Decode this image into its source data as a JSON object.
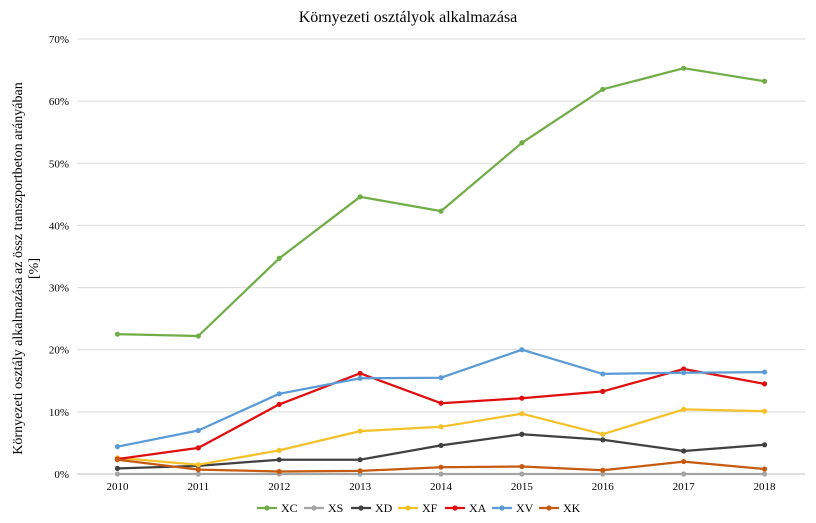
{
  "chart_data": {
    "type": "line",
    "title": "Környezeti osztályok alkalmazása",
    "xlabel": "",
    "ylabel": "Környezeti osztály alkalmazása az össz transzportbeton arányában [%]",
    "ylabel_lines": [
      "Környezeti osztály alkalmazása az össz  transzportbeton arányában",
      "[%]"
    ],
    "x": [
      "2010",
      "2011",
      "2012",
      "2013",
      "2014",
      "2015",
      "2016",
      "2017",
      "2018"
    ],
    "ylim": [
      0,
      70
    ],
    "yticks": [
      0,
      10,
      20,
      30,
      40,
      50,
      60,
      70
    ],
    "ytick_labels": [
      "0%",
      "10%",
      "20%",
      "30%",
      "40%",
      "50%",
      "60%",
      "70%"
    ],
    "grid": "horizontal",
    "legend_position": "bottom",
    "series": [
      {
        "name": "XC",
        "color": "#70ad47",
        "values": [
          22.5,
          22.2,
          34.7,
          44.6,
          42.3,
          53.3,
          61.9,
          65.3,
          63.2
        ]
      },
      {
        "name": "XS",
        "color": "#a5a5a5",
        "values": [
          0.0,
          0.0,
          0.0,
          0.0,
          0.0,
          0.0,
          0.0,
          0.0,
          0.0
        ]
      },
      {
        "name": "XD",
        "color": "#404040",
        "values": [
          0.9,
          1.3,
          2.3,
          2.3,
          4.6,
          6.4,
          5.5,
          3.7,
          4.7
        ]
      },
      {
        "name": "XF",
        "color": "#f5c12b",
        "values": [
          2.6,
          1.5,
          3.8,
          6.9,
          7.6,
          9.7,
          6.4,
          10.4,
          10.1
        ]
      },
      {
        "name": "XA",
        "color": "#e00f0f",
        "values": [
          2.4,
          4.2,
          11.2,
          16.2,
          11.4,
          12.2,
          13.3,
          16.9,
          14.5
        ]
      },
      {
        "name": "XV",
        "color": "#5b9bd5",
        "values": [
          4.4,
          7.0,
          12.9,
          15.4,
          15.5,
          20.0,
          16.1,
          16.3,
          16.4
        ]
      },
      {
        "name": "XK",
        "color": "#c55a11",
        "values": [
          2.3,
          0.7,
          0.4,
          0.5,
          1.1,
          1.2,
          0.6,
          2.0,
          0.8
        ]
      }
    ]
  }
}
